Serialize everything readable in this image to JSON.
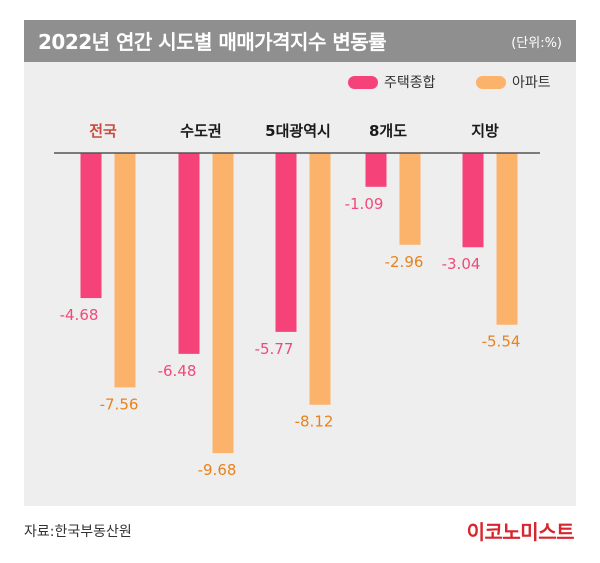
{
  "header": {
    "title": "2022년 연간 시도별 매매가격지수 변동률",
    "unit": "(단위:%)"
  },
  "footer": {
    "source": "자료:한국부동산원",
    "brand": "이코노미스트"
  },
  "colors": {
    "housing": "#f5437a",
    "apartment": "#fbb26a",
    "housing_label": "#ef4a7b",
    "apartment_label": "#e8821e",
    "highlight_category": "#c94b3c"
  },
  "chart_data": {
    "type": "bar",
    "categories": [
      "전국",
      "수도권",
      "5대광역시",
      "8개도",
      "지방"
    ],
    "series": [
      {
        "name": "주택종합",
        "values": [
          -4.68,
          -6.48,
          -5.77,
          -1.09,
          -3.04
        ],
        "labels": [
          "-4.68",
          "-6.48",
          "-5.77",
          "-1.09",
          "-3.04"
        ]
      },
      {
        "name": "아파트",
        "values": [
          -7.56,
          -9.68,
          -8.12,
          -2.96,
          -5.54
        ],
        "labels": [
          "-7.56",
          "-9.68",
          "-8.12",
          "-2.96",
          "-5.54"
        ]
      }
    ],
    "title": "2022년 연간 시도별 매매가격지수 변동률",
    "ylim": [
      -10,
      0
    ],
    "legend": "top-right",
    "grid": false
  }
}
